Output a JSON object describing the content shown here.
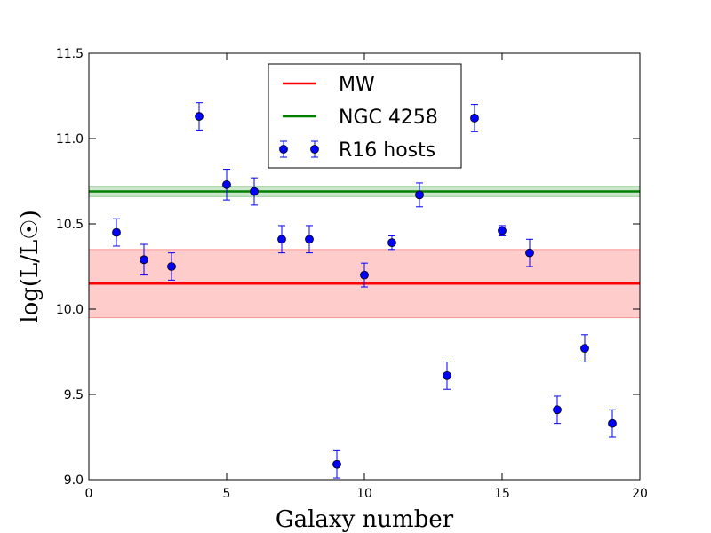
{
  "chart_data": {
    "type": "scatter",
    "title": "",
    "xlabel": "Galaxy number",
    "ylabel": "log(L/L☉)",
    "xlim": [
      0,
      20
    ],
    "ylim": [
      9.0,
      11.5
    ],
    "xticks": [
      0,
      5,
      10,
      15,
      20
    ],
    "xtick_labels": [
      "0",
      "5",
      "10",
      "15",
      "20"
    ],
    "yticks": [
      9.0,
      9.5,
      10.0,
      10.5,
      11.0,
      11.5
    ],
    "ytick_labels": [
      "9.0",
      "9.5",
      "10.0",
      "10.5",
      "11.0",
      "11.5"
    ],
    "grid": false,
    "legend_position": "top-center",
    "reference_lines": [
      {
        "name": "MW",
        "value": 10.15,
        "band": [
          9.95,
          10.35
        ],
        "color": "#ff0000",
        "band_color": "#ff0000",
        "band_alpha": 0.2
      },
      {
        "name": "NGC 4258",
        "value": 10.69,
        "band": [
          10.66,
          10.72
        ],
        "color": "#008000",
        "band_color": "#008000",
        "band_alpha": 0.2
      }
    ],
    "series": [
      {
        "name": "R16 hosts",
        "color": "#0000ff",
        "points": [
          {
            "x": 1,
            "y": 10.45,
            "err": 0.08
          },
          {
            "x": 2,
            "y": 10.29,
            "err": 0.09
          },
          {
            "x": 3,
            "y": 10.25,
            "err": 0.08
          },
          {
            "x": 4,
            "y": 11.13,
            "err": 0.08
          },
          {
            "x": 5,
            "y": 10.73,
            "err": 0.09
          },
          {
            "x": 6,
            "y": 10.69,
            "err": 0.08
          },
          {
            "x": 7,
            "y": 10.41,
            "err": 0.08
          },
          {
            "x": 8,
            "y": 10.41,
            "err": 0.08
          },
          {
            "x": 9,
            "y": 9.09,
            "err": 0.08
          },
          {
            "x": 10,
            "y": 10.2,
            "err": 0.07
          },
          {
            "x": 11,
            "y": 10.39,
            "err": 0.04
          },
          {
            "x": 12,
            "y": 10.67,
            "err": 0.07
          },
          {
            "x": 13,
            "y": 9.61,
            "err": 0.08
          },
          {
            "x": 14,
            "y": 11.12,
            "err": 0.08
          },
          {
            "x": 15,
            "y": 10.46,
            "err": 0.03
          },
          {
            "x": 16,
            "y": 10.33,
            "err": 0.08
          },
          {
            "x": 17,
            "y": 9.41,
            "err": 0.08
          },
          {
            "x": 18,
            "y": 9.77,
            "err": 0.08
          },
          {
            "x": 19,
            "y": 9.33,
            "err": 0.08
          }
        ]
      }
    ],
    "legend": [
      {
        "label": "MW",
        "kind": "line",
        "color": "#ff0000"
      },
      {
        "label": "NGC 4258",
        "kind": "line",
        "color": "#008000"
      },
      {
        "label": "R16 hosts",
        "kind": "errorbar",
        "color": "#0000ff"
      }
    ]
  }
}
